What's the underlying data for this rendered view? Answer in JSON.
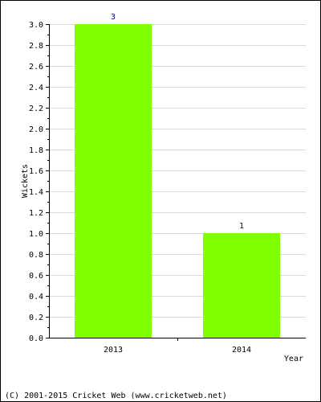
{
  "chart_data": {
    "type": "bar",
    "categories": [
      "2013",
      "2014"
    ],
    "values": [
      3,
      1
    ],
    "data_labels": [
      "3",
      "1"
    ],
    "title": "",
    "xlabel": "Year",
    "ylabel": "Wickets",
    "ylim": [
      0,
      3.0
    ],
    "y_ticks": [
      "0.0",
      "0.2",
      "0.4",
      "0.6",
      "0.8",
      "1.0",
      "1.2",
      "1.4",
      "1.6",
      "1.8",
      "2.0",
      "2.2",
      "2.4",
      "2.6",
      "2.8",
      "3.0"
    ],
    "grid": true,
    "legend": "none",
    "colors": {
      "bar": "#80ff00",
      "label": "#000080",
      "grid": "#d9d9d9"
    }
  },
  "footer": {
    "credit": "(C) 2001-2015 Cricket Web (www.cricketweb.net)"
  }
}
